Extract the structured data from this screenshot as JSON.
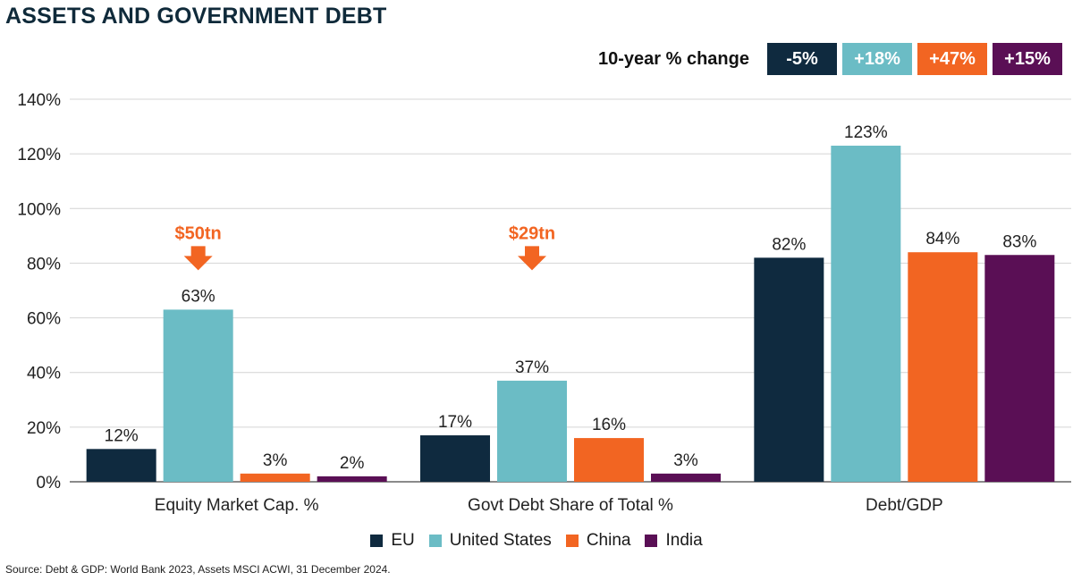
{
  "title": "ASSETS AND GOVERNMENT DEBT",
  "change": {
    "label": "10-year % change",
    "chips": [
      {
        "text": "-5%",
        "color": "#0f2a3f"
      },
      {
        "text": "+18%",
        "color": "#6bbcc5"
      },
      {
        "text": "+47%",
        "color": "#f26522"
      },
      {
        "text": "+15%",
        "color": "#5a0f55"
      }
    ]
  },
  "chart_data": {
    "type": "bar",
    "categories": [
      "Equity Market Cap. %",
      "Govt Debt Share of Total %",
      "Debt/GDP"
    ],
    "series": [
      {
        "name": "EU",
        "color": "#0f2a3f",
        "values": [
          12,
          17,
          82
        ],
        "labels": [
          "12%",
          "17%",
          "82%"
        ]
      },
      {
        "name": "United States",
        "color": "#6bbcc5",
        "values": [
          63,
          37,
          123
        ],
        "labels": [
          "63%",
          "37%",
          "123%"
        ]
      },
      {
        "name": "China",
        "color": "#f26522",
        "values": [
          3,
          16,
          84
        ],
        "labels": [
          "3%",
          "16%",
          "84%"
        ]
      },
      {
        "name": "India",
        "color": "#5a0f55",
        "values": [
          2,
          3,
          83
        ],
        "labels": [
          "2%",
          "3%",
          "83%"
        ]
      }
    ],
    "yticks": [
      "0%",
      "20%",
      "40%",
      "60%",
      "80%",
      "100%",
      "120%",
      "140%"
    ],
    "ylim": [
      0,
      140
    ],
    "annotations": [
      {
        "category": 0,
        "text": "$50tn",
        "level": 82
      },
      {
        "category": 1,
        "text": "$29tn",
        "level": 82
      }
    ],
    "grid": true,
    "legend": "bottom-center"
  },
  "source": "Source: Debt & GDP: World Bank 2023, Assets MSCI ACWI, 31 December 2024."
}
